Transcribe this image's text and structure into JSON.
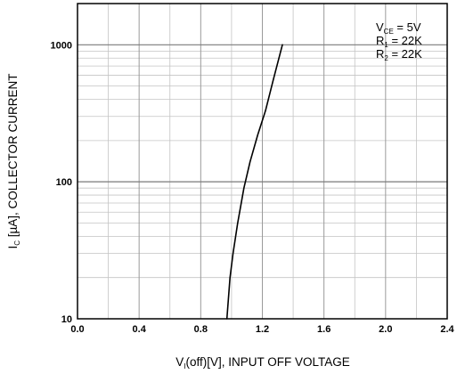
{
  "chart_data": {
    "type": "line",
    "x_axis": {
      "label_main": "V",
      "label_sub": "I",
      "label_rest": "(off)[V], INPUT OFF VOLTAGE",
      "lim": [
        0.0,
        2.4
      ],
      "ticks": [
        0.0,
        0.4,
        0.8,
        1.2,
        1.6,
        2.0,
        2.4
      ],
      "tick_labels": [
        "0.0",
        "0.4",
        "0.8",
        "1.2",
        "1.6",
        "2.0",
        "2.4"
      ],
      "minor_step": 0.2
    },
    "y_axis": {
      "label_main": "I",
      "label_sub": "C",
      "label_rest": " [µA], COLLECTOR CURRENT",
      "scale": "log",
      "lim": [
        10,
        2000
      ],
      "major_ticks": [
        10,
        100,
        1000
      ],
      "tick_labels": [
        "10",
        "100",
        "1000"
      ]
    },
    "grid": true,
    "annotations": [
      {
        "main": "V",
        "sub": "CE",
        "rest": " = 5V"
      },
      {
        "main": "R",
        "sub": "1",
        "rest": " = 22K"
      },
      {
        "main": "R",
        "sub": "2",
        "rest": " = 22K"
      }
    ],
    "series": [
      {
        "color": "#000000",
        "x": [
          0.97,
          0.99,
          1.01,
          1.04,
          1.08,
          1.12,
          1.17,
          1.22,
          1.27,
          1.33
        ],
        "y": [
          10,
          20,
          30,
          50,
          90,
          140,
          220,
          330,
          550,
          1000
        ]
      }
    ]
  }
}
